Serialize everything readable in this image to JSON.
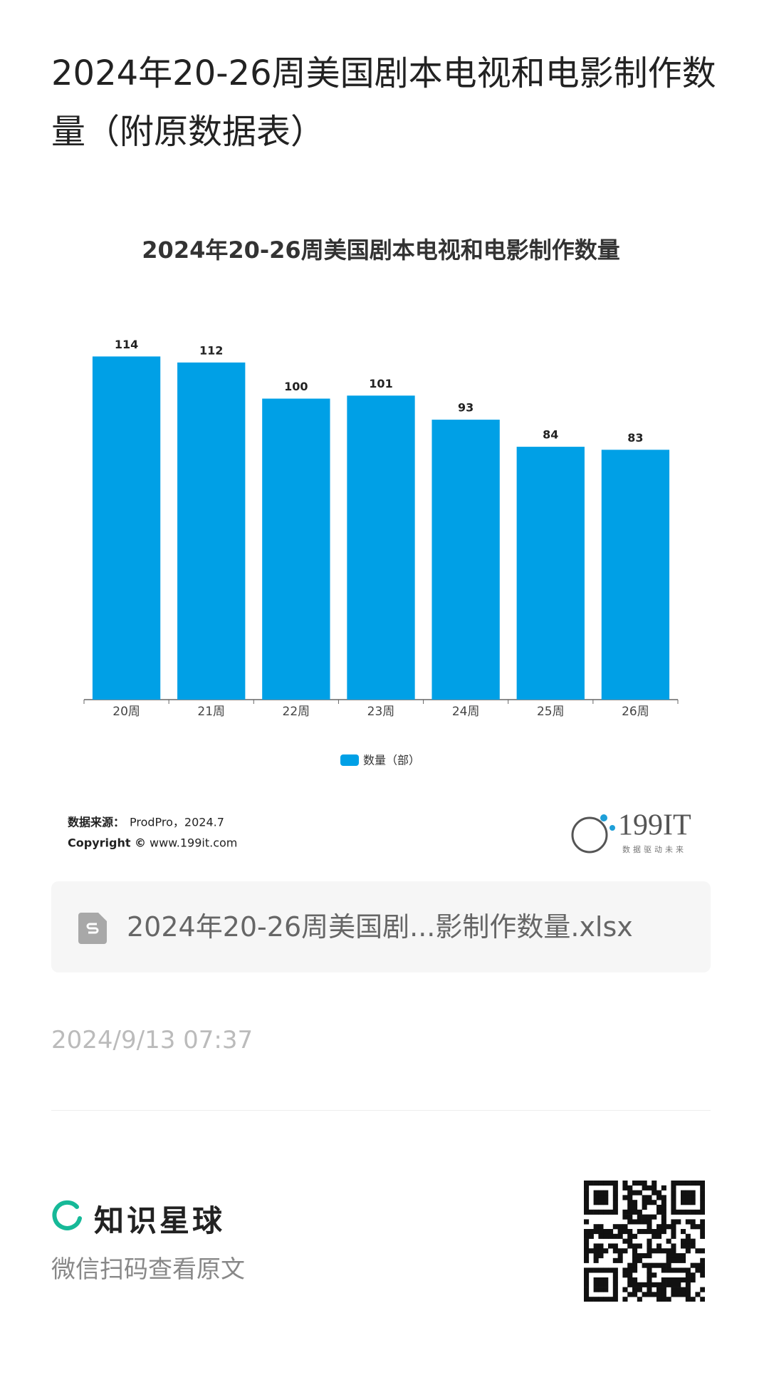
{
  "header": {
    "title": "2024年20-26周美国剧本电视和电影制作数量（附原数据表）"
  },
  "chart_data": {
    "type": "bar",
    "title": "2024年20-26周美国剧本电视和电影制作数量",
    "categories": [
      "20周",
      "21周",
      "22周",
      "23周",
      "24周",
      "25周",
      "26周"
    ],
    "series": [
      {
        "name": "数量（部）",
        "color": "#00a0e6",
        "values": [
          114,
          112,
          100,
          101,
          93,
          84,
          83
        ]
      }
    ],
    "ylim": [
      0,
      120
    ],
    "grid": false
  },
  "source": {
    "label": "数据来源：",
    "text": "ProdPro，2024.7",
    "copyright": "Copyright ©",
    "site": "www.199it.com"
  },
  "logo": {
    "name": "199IT",
    "slogan": "数据驱动未来"
  },
  "file": {
    "name": "2024年20-26周美国剧...影制作数量.xlsx"
  },
  "date": "2024/9/13 07:37",
  "footer": {
    "brand": "知识星球",
    "hint": "微信扫码查看原文"
  }
}
